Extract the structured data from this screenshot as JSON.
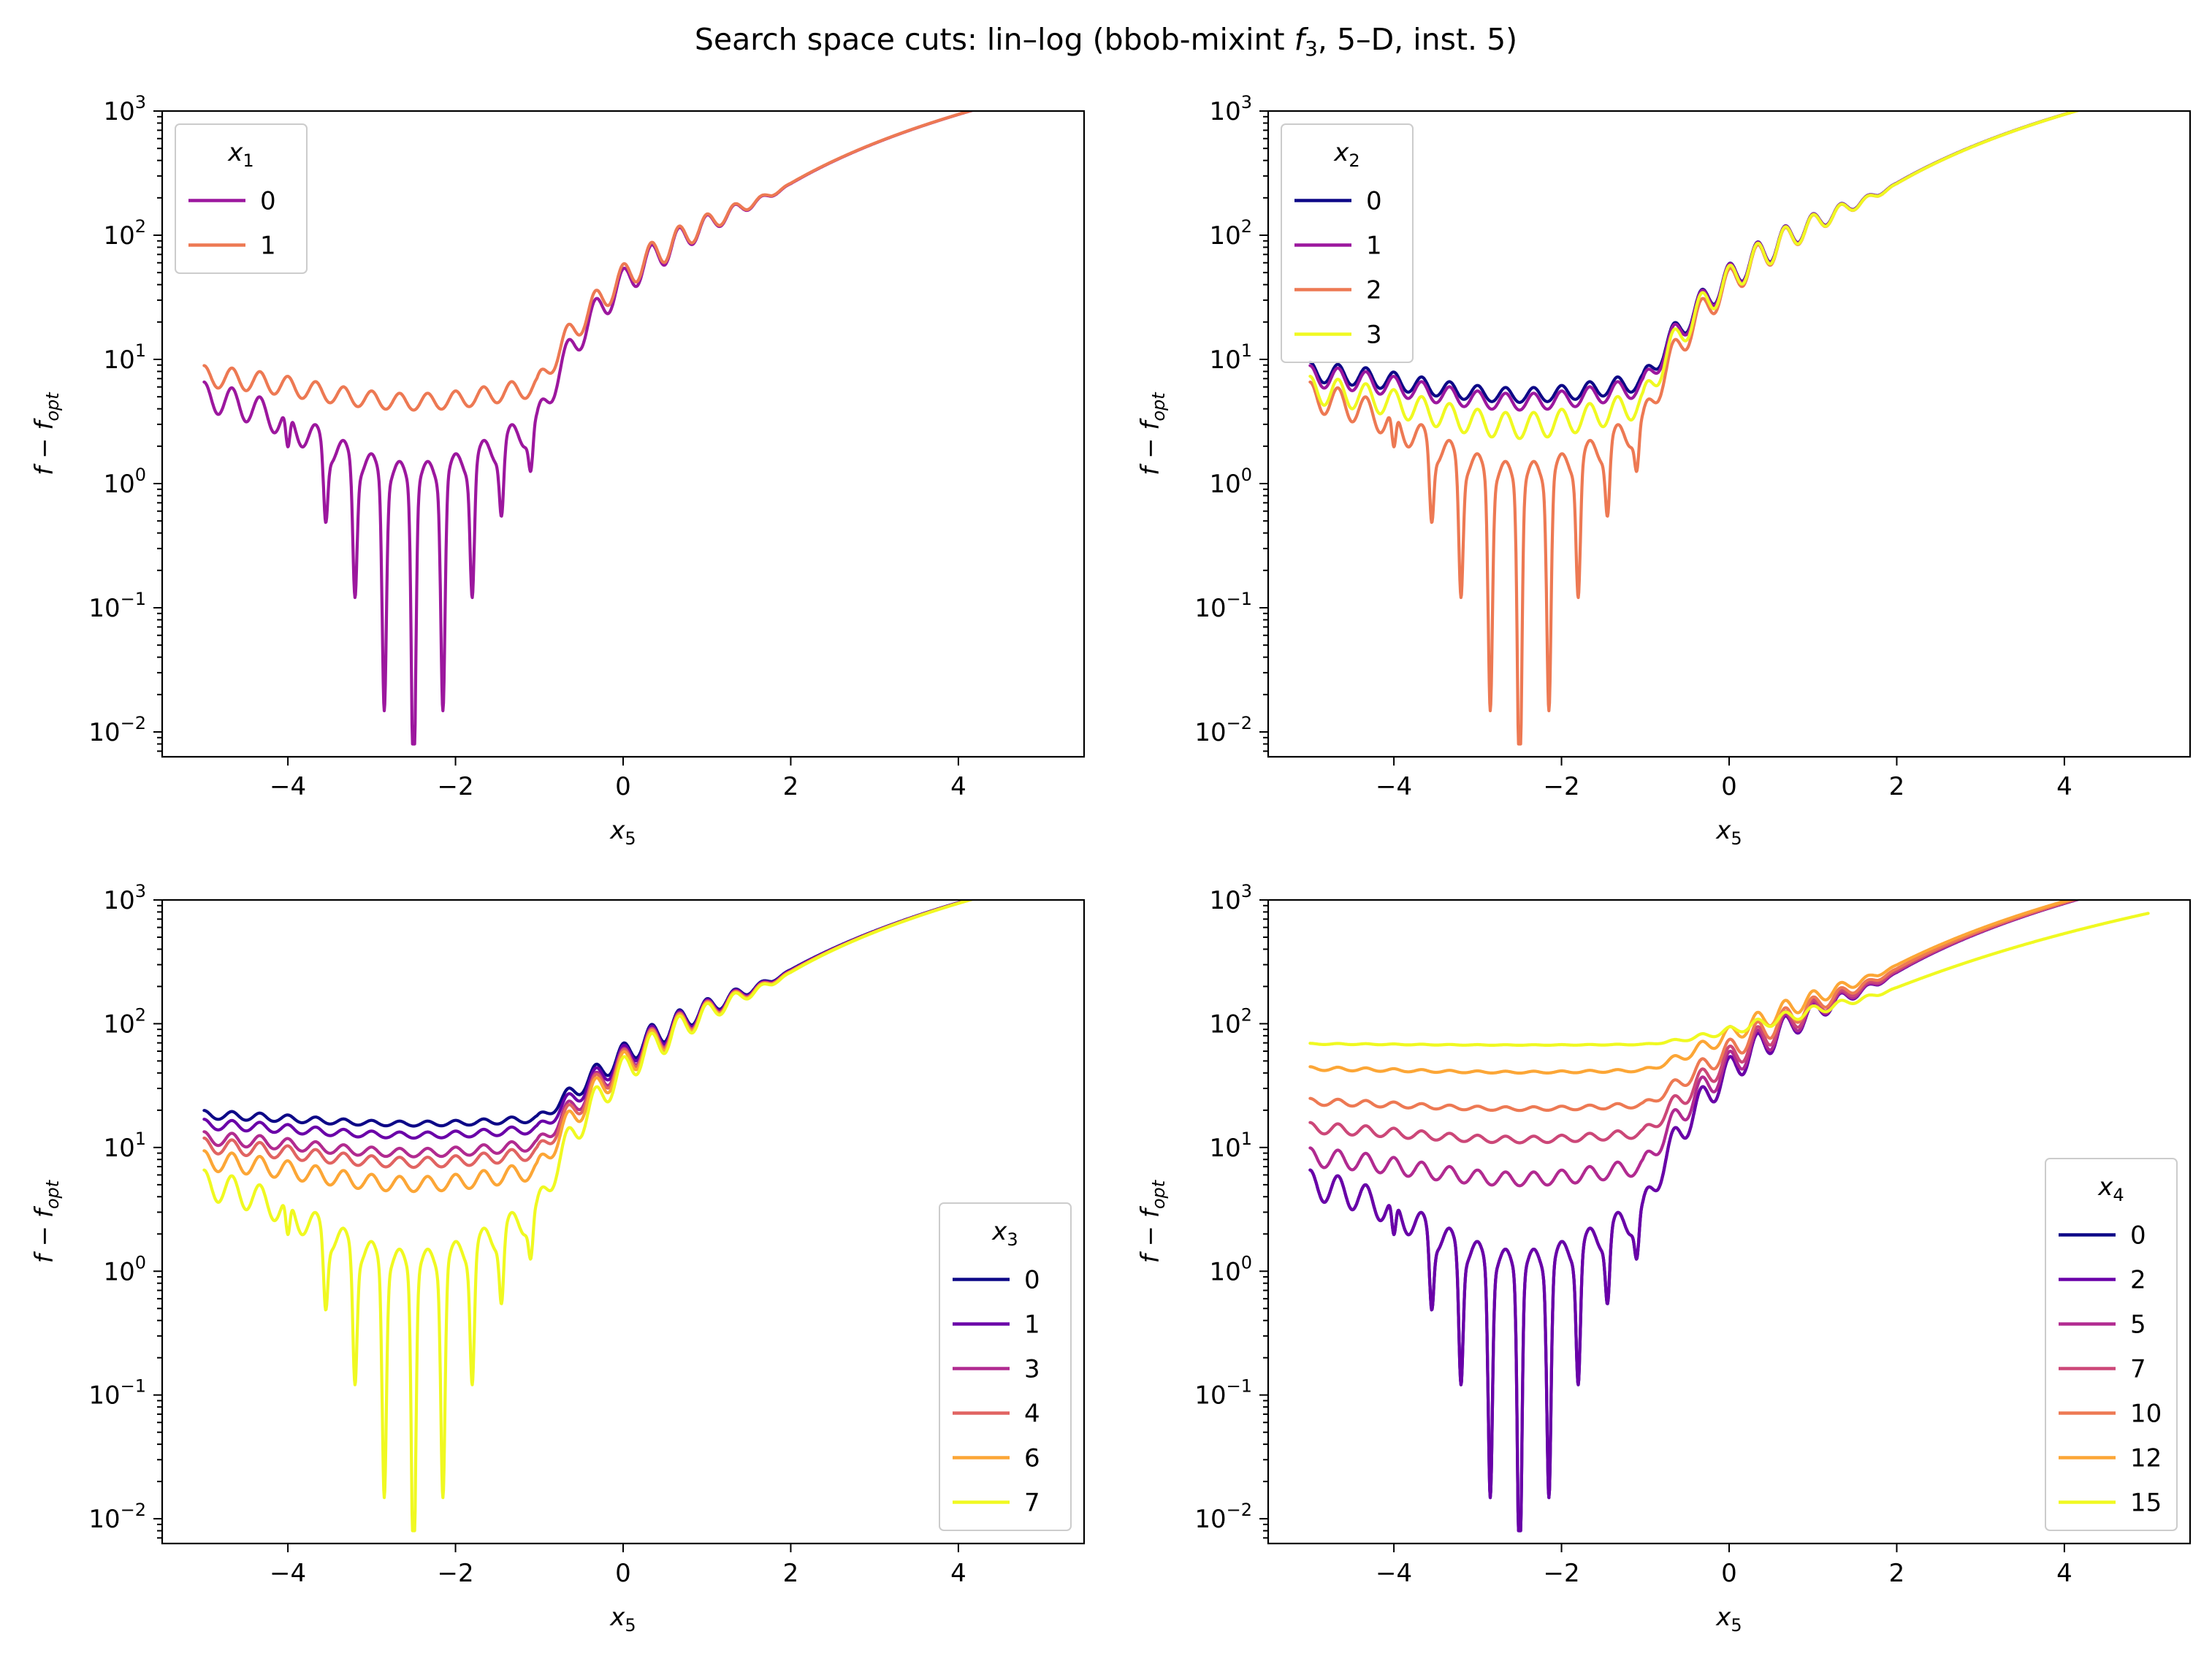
{
  "figure": {
    "title_prefix": "Search space cuts: lin–log (bbob-mixint ",
    "title_f": "f",
    "title_f_sub": "3",
    "title_suffix": ", 5–D, inst. 5)"
  },
  "chart_data": [
    {
      "type": "line",
      "panel": "top-left",
      "xlabel": "x",
      "xlabel_sub": "5",
      "ylabel": "f − f",
      "ylabel_sub": "opt",
      "xlim": [
        -5.5,
        5.5
      ],
      "ylim_log10": [
        -2.2,
        3.0
      ],
      "yscale": "log",
      "x_ticks": [
        "−4",
        "−2",
        "0",
        "2",
        "4"
      ],
      "x_tick_values": [
        -4,
        -2,
        0,
        2,
        4
      ],
      "y_tick_exponents": [
        "−2",
        "−1",
        "0",
        "1",
        "2",
        "3"
      ],
      "legend": {
        "title": "x",
        "title_sub": "1",
        "placement": "upper left"
      },
      "series": [
        {
          "name": "0",
          "color": "#9c179e",
          "offset": 0,
          "amp": 1,
          "deep": true
        },
        {
          "name": "1",
          "color": "#ed7953",
          "offset": 2,
          "amp": 1,
          "deep": false
        }
      ]
    },
    {
      "type": "line",
      "panel": "top-right",
      "xlabel": "x",
      "xlabel_sub": "5",
      "ylabel": "f − f",
      "ylabel_sub": "opt",
      "xlim": [
        -5.5,
        5.5
      ],
      "ylim_log10": [
        -2.2,
        3.0
      ],
      "yscale": "log",
      "x_ticks": [
        "−4",
        "−2",
        "0",
        "2",
        "4"
      ],
      "x_tick_values": [
        -4,
        -2,
        0,
        2,
        4
      ],
      "y_tick_exponents": [
        "−2",
        "−1",
        "0",
        "1",
        "2",
        "3"
      ],
      "legend": {
        "title": "x",
        "title_sub": "2",
        "placement": "upper left"
      },
      "series": [
        {
          "name": "0",
          "color": "#0d0887",
          "offset": 2.6,
          "amp": 1,
          "deep": false
        },
        {
          "name": "1",
          "color": "#9c179e",
          "offset": 2,
          "amp": 1,
          "deep": false
        },
        {
          "name": "2",
          "color": "#ed7953",
          "offset": 0,
          "amp": 1,
          "deep": true
        },
        {
          "name": "3",
          "color": "#f0f921",
          "offset": 0.4,
          "amp": 1,
          "deep": false
        }
      ]
    },
    {
      "type": "line",
      "panel": "bottom-left",
      "xlabel": "x",
      "xlabel_sub": "5",
      "ylabel": "f − f",
      "ylabel_sub": "opt",
      "xlim": [
        -5.5,
        5.5
      ],
      "ylim_log10": [
        -2.2,
        3.0
      ],
      "yscale": "log",
      "x_ticks": [
        "−4",
        "−2",
        "0",
        "2",
        "4"
      ],
      "x_tick_values": [
        -4,
        -2,
        0,
        2,
        4
      ],
      "y_tick_exponents": [
        "−2",
        "−1",
        "0",
        "1",
        "2",
        "3"
      ],
      "legend": {
        "title": "x",
        "title_sub": "3",
        "placement": "lower right"
      },
      "series": [
        {
          "name": "0",
          "color": "#0d0887",
          "offset": 13,
          "amp": 1,
          "deep": false
        },
        {
          "name": "1",
          "color": "#6a00a8",
          "offset": 10,
          "amp": 1,
          "deep": false
        },
        {
          "name": "3",
          "color": "#b12a90",
          "offset": 6.5,
          "amp": 1,
          "deep": false
        },
        {
          "name": "4",
          "color": "#e16462",
          "offset": 5,
          "amp": 1,
          "deep": false
        },
        {
          "name": "6",
          "color": "#fca636",
          "offset": 2.5,
          "amp": 1,
          "deep": false
        },
        {
          "name": "7",
          "color": "#f0f921",
          "offset": 0,
          "amp": 1,
          "deep": true
        }
      ]
    },
    {
      "type": "line",
      "panel": "bottom-right",
      "xlabel": "x",
      "xlabel_sub": "5",
      "ylabel": "f − f",
      "ylabel_sub": "opt",
      "xlim": [
        -5.5,
        5.5
      ],
      "ylim_log10": [
        -2.2,
        3.0
      ],
      "yscale": "log",
      "x_ticks": [
        "−4",
        "−2",
        "0",
        "2",
        "4"
      ],
      "x_tick_values": [
        -4,
        -2,
        0,
        2,
        4
      ],
      "y_tick_exponents": [
        "−2",
        "−1",
        "0",
        "1",
        "2",
        "3"
      ],
      "legend": {
        "title": "x",
        "title_sub": "4",
        "placement": "lower right"
      },
      "series": [
        {
          "name": "0",
          "color": "#0d0887",
          "offset": 0,
          "amp": 1,
          "deep": true
        },
        {
          "name": "2",
          "color": "#6a00a8",
          "offset": 0,
          "amp": 1,
          "deep": true
        },
        {
          "name": "5",
          "color": "#b12a90",
          "offset": 3,
          "amp": 1,
          "deep": false
        },
        {
          "name": "7",
          "color": "#cc4778",
          "offset": 9,
          "amp": 1,
          "deep": false
        },
        {
          "name": "10",
          "color": "#ed7953",
          "offset": 18,
          "amp": 1,
          "deep": false
        },
        {
          "name": "12",
          "color": "#fca636",
          "offset": 38,
          "amp": 1,
          "deep": false
        },
        {
          "name": "15",
          "color": "#f0f921",
          "offset": 66,
          "amp": 0.5,
          "deep": false
        }
      ]
    }
  ]
}
